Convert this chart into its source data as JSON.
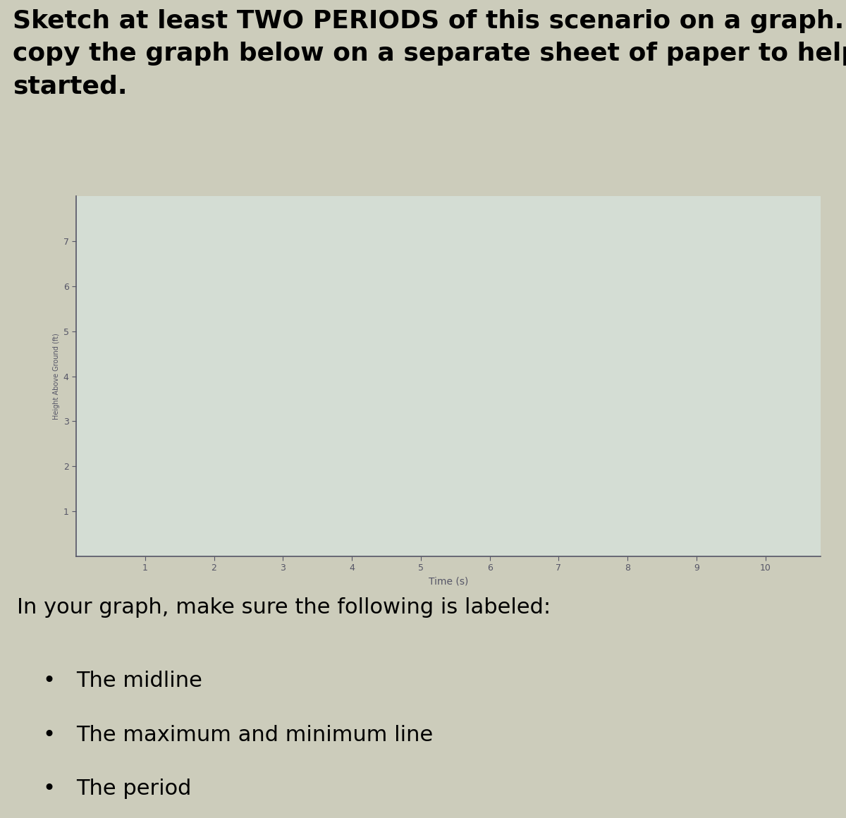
{
  "title_line1": "Sketch at least TWO PERIODS of this scenario on a graph. You can",
  "title_line2": "copy the graph below on a separate sheet of paper to help get you",
  "title_line3": "started.",
  "xlabel": "Time (s)",
  "ylabel": "Height Above Ground (ft)",
  "x_ticks": [
    1,
    2,
    3,
    4,
    5,
    6,
    7,
    8,
    9,
    10
  ],
  "y_ticks": [
    1,
    2,
    3,
    4,
    5,
    6,
    7
  ],
  "xlim": [
    0,
    10.8
  ],
  "ylim": [
    0,
    8.0
  ],
  "bg_color": "#ccccbb",
  "graph_bg": "#d4ddd4",
  "axis_color": "#555566",
  "bullet_items": [
    "The midline",
    "The maximum and minimum line",
    "The period"
  ],
  "bullet_intro": "In your graph, make sure the following is labeled:",
  "title_fontsize": 26,
  "body_fontsize": 22,
  "bullet_fontsize": 22,
  "tick_label_fontsize": 9
}
